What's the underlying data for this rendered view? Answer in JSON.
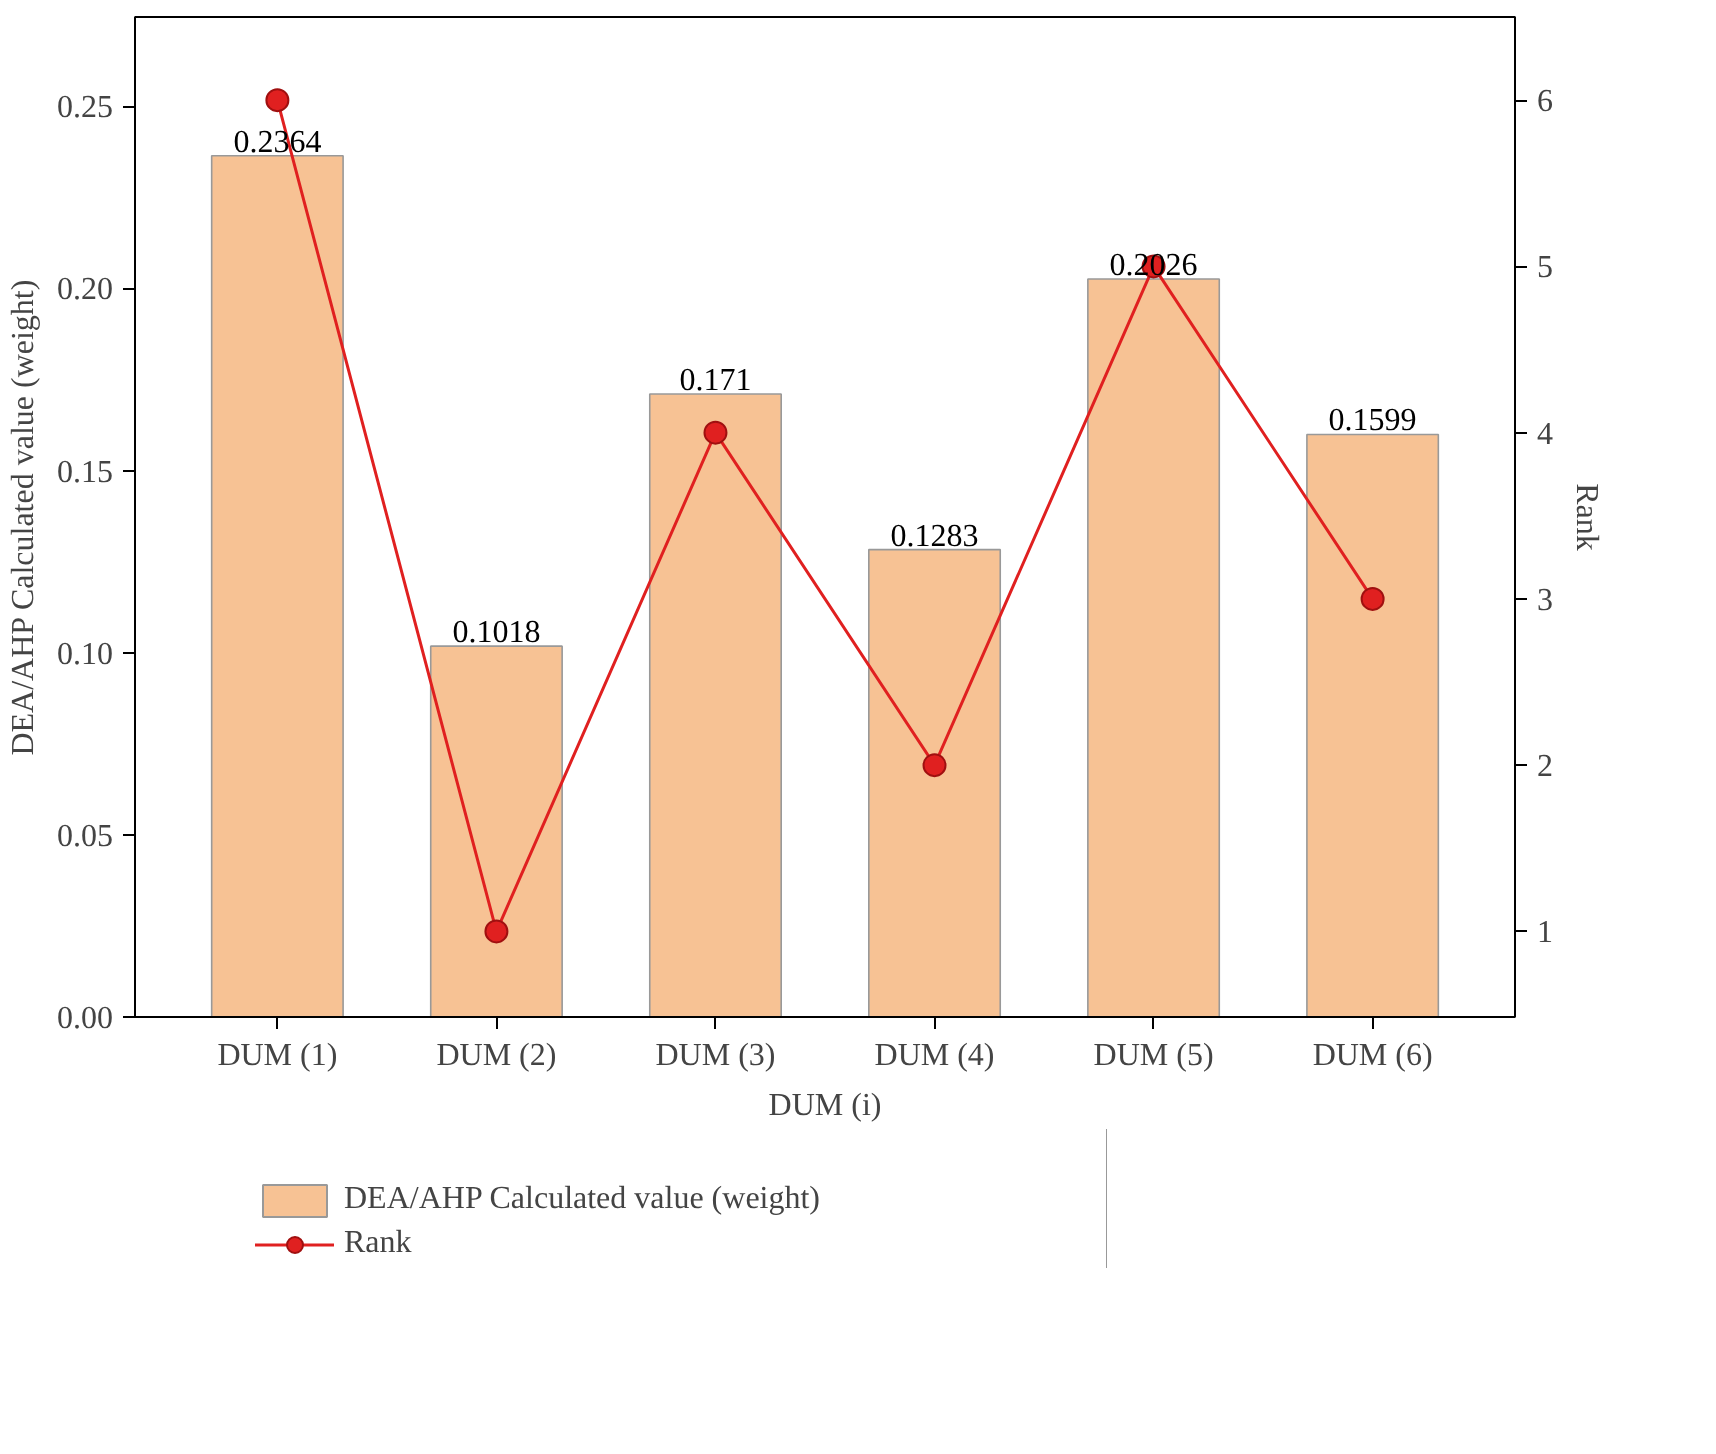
{
  "chart_data": {
    "type": "bar",
    "xlabel": "DUM (i)",
    "ylabel": "DEA/AHP Calculated value (weight)",
    "y2label": "Rank",
    "categories": [
      "DUM (1)",
      "DUM (2)",
      "DUM (3)",
      "DUM (4)",
      "DUM (5)",
      "DUM (6)"
    ],
    "series": [
      {
        "name": "DEA/AHP Calculated value (weight)",
        "color": "#f7c294",
        "values": [
          0.2364,
          0.1018,
          0.171,
          0.1283,
          0.2026,
          0.1599
        ],
        "value_labels": [
          "0.2364",
          "0.1018",
          "0.171",
          "0.1283",
          "0.2026",
          "0.1599"
        ]
      },
      {
        "name": "Rank",
        "type": "line",
        "axis": "y2",
        "color": "#e02020",
        "marker": "circle",
        "values": [
          6,
          1,
          4,
          2,
          5,
          3
        ]
      }
    ],
    "ylim": [
      0,
      0.2745
    ],
    "yticks": [
      {
        "value": 0,
        "label": "0.00"
      },
      {
        "value": 0.05,
        "label": "0.05"
      },
      {
        "value": 0.1,
        "label": "0.10"
      },
      {
        "value": 0.15,
        "label": "0.15"
      },
      {
        "value": 0.2,
        "label": "0.20"
      },
      {
        "value": 0.25,
        "label": "0.25"
      }
    ],
    "y2lim": [
      0.485,
      6.5
    ],
    "y2ticks": [
      1,
      2,
      3,
      4,
      5,
      6
    ],
    "grid": false,
    "legend": "bottom"
  }
}
